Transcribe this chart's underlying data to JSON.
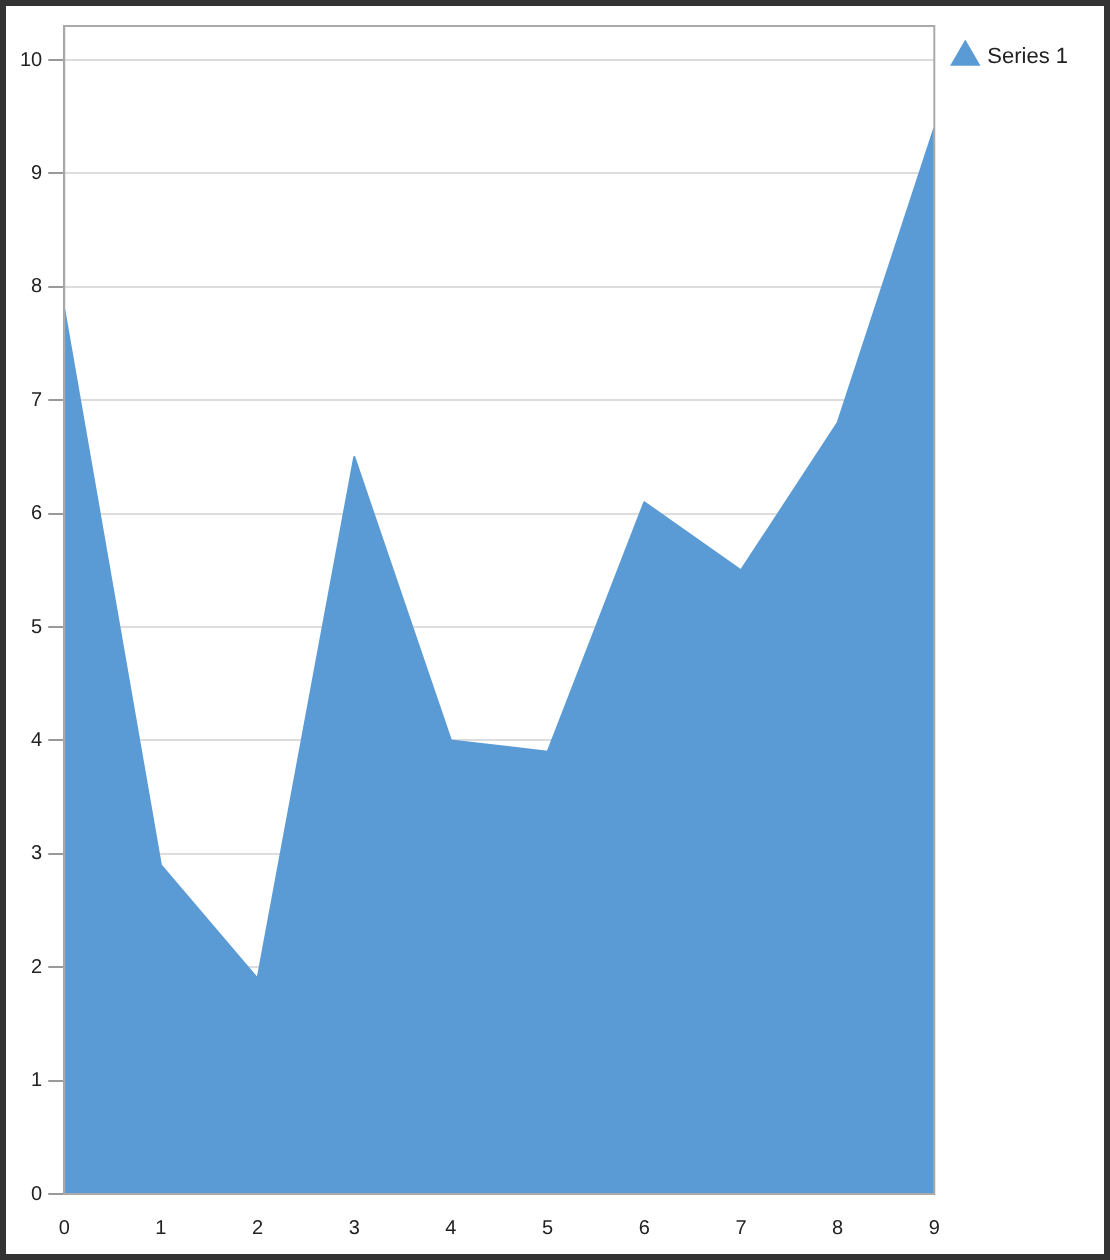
{
  "chart_data": {
    "type": "area",
    "x": [
      0,
      1,
      2,
      3,
      4,
      5,
      6,
      7,
      8,
      9
    ],
    "series": [
      {
        "name": "Series 1",
        "color": "#5b9bd5",
        "values": [
          7.8,
          2.9,
          1.9,
          6.5,
          4.0,
          3.9,
          6.1,
          5.5,
          6.8,
          9.4
        ]
      }
    ],
    "xlim": [
      0,
      9
    ],
    "xticks": [
      0,
      1,
      2,
      3,
      4,
      5,
      6,
      7,
      8,
      9
    ],
    "ylim": [
      0,
      10.3
    ],
    "yticks": [
      0,
      1,
      2,
      3,
      4,
      5,
      6,
      7,
      8,
      9,
      10
    ],
    "grid": "y",
    "legend": "top right",
    "marker": "none"
  }
}
